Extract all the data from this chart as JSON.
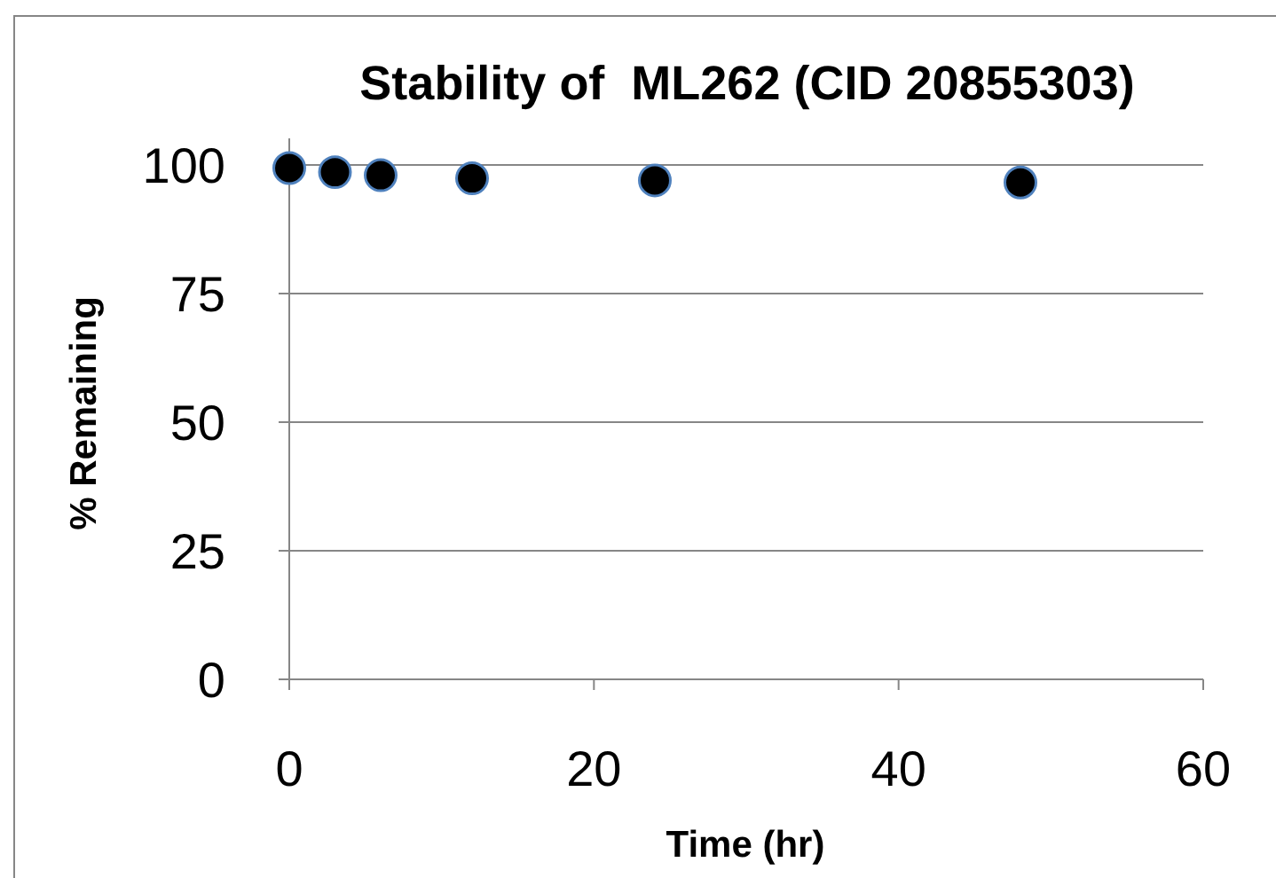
{
  "chart_data": {
    "type": "scatter",
    "title": "Stability of  ML262 (CID 20855303)",
    "xlabel": "Time (hr)",
    "ylabel": "% Remaining",
    "x": [
      0,
      3,
      6,
      12,
      24,
      48
    ],
    "series": [
      {
        "color": "#000000",
        "values": [
          99.4,
          98.6,
          98,
          97.4,
          97,
          96.6
        ]
      }
    ],
    "xlim": [
      0,
      60
    ],
    "xticks": [
      0,
      20,
      40,
      60
    ],
    "ylim": [
      0,
      100
    ],
    "yticks": [
      0,
      25,
      50,
      75,
      100
    ],
    "grid": "y",
    "marker": "circle"
  }
}
